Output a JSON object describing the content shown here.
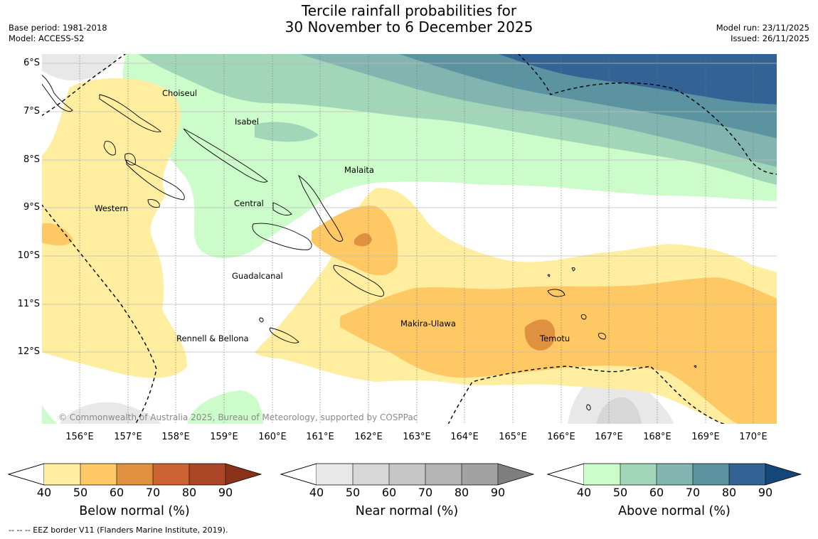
{
  "title": {
    "line1": "Tercile rainfall probabilities for",
    "line2": "30 November to 6 December 2025"
  },
  "meta_left": {
    "base_period": "Base period: 1981-2018",
    "model": "Model: ACCESS-S2"
  },
  "meta_right": {
    "model_run": "Model run: 23/11/2025",
    "issued": "Issued: 26/11/2025"
  },
  "map": {
    "lat_labels": [
      "6°S",
      "7°S",
      "8°S",
      "9°S",
      "10°S",
      "11°S",
      "12°S"
    ],
    "lon_labels": [
      "156°E",
      "157°E",
      "158°E",
      "159°E",
      "160°E",
      "161°E",
      "162°E",
      "163°E",
      "164°E",
      "165°E",
      "166°E",
      "167°E",
      "168°E",
      "169°E",
      "170°E"
    ],
    "place_labels": {
      "choiseul": "Choiseul",
      "isabel": "Isabel",
      "malaita": "Malaita",
      "central": "Central",
      "western": "Western",
      "guadalcanal": "Guadalcanal",
      "makira": "Makira-Ulawa",
      "temotu": "Temotu",
      "rennell": "Rennell & Bellona"
    },
    "copyright": "© Commonwealth of Australia 2025, Bureau of Meteorology, supported by COSPPac"
  },
  "colorbars": {
    "ticks": [
      "40",
      "50",
      "60",
      "70",
      "80",
      "90"
    ],
    "below": {
      "label": "Below normal (%)",
      "colors": [
        "#ffeda0",
        "#fec965",
        "#e0913f",
        "#cc6131",
        "#ab4726",
        "#8a3217"
      ]
    },
    "near": {
      "label": "Near normal (%)",
      "colors": [
        "#e8e8e8",
        "#d7d7d7",
        "#c6c6c6",
        "#b4b4b4",
        "#a2a2a2",
        "#7f7f7f"
      ]
    },
    "above": {
      "label": "Above normal (%)",
      "colors": [
        "#ccfcca",
        "#a2d6b8",
        "#82b5b0",
        "#5b93a0",
        "#336394",
        "#15467a"
      ]
    }
  },
  "footnote": "--  --  -- EEZ border V11 (Flanders Marine Institute, 2019)."
}
